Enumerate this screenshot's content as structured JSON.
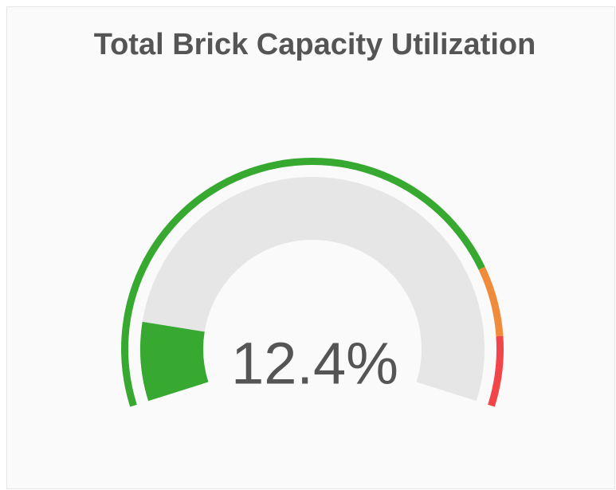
{
  "chart_data": {
    "type": "gauge",
    "title": "Total Brick Capacity Utilization",
    "value": 12.4,
    "value_label": "12.4%",
    "ylim": [
      0,
      100
    ],
    "color": "#37a930",
    "thresholds": [
      {
        "value": 80,
        "color": "#ef8b3b"
      },
      {
        "value": 90,
        "color": "#f2454a"
      }
    ]
  }
}
